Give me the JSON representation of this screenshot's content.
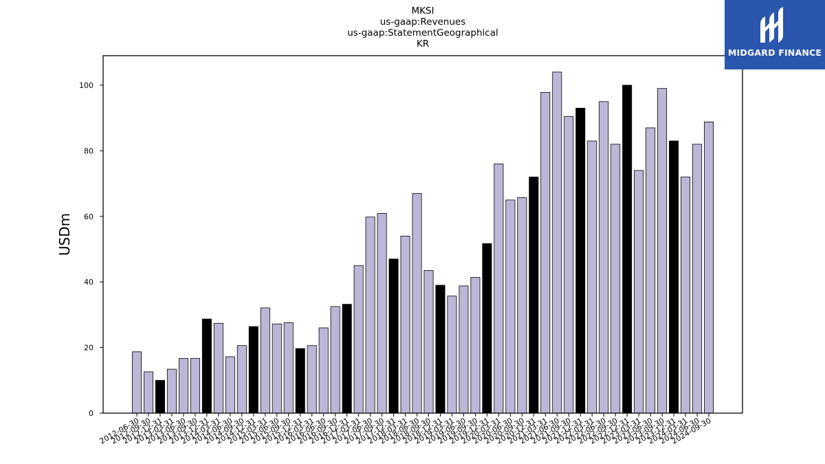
{
  "chart_data": {
    "type": "bar",
    "title_lines": [
      "MKSI",
      "us-gaap:Revenues",
      "us-gaap:StatementGeographical",
      "KR"
    ],
    "xlabel": "",
    "ylabel": "USDm",
    "ylim": [
      0,
      109
    ],
    "yticks": [
      0,
      20,
      40,
      60,
      80,
      100
    ],
    "grid": false,
    "colors": {
      "quarter": "#bcb7d7",
      "annual": "#000000",
      "edge": "#000000"
    },
    "categories": [
      "2012-06-30",
      "2012-09-30",
      "2012-12-31",
      "2013-03-31",
      "2013-06-30",
      "2013-09-30",
      "2013-12-31",
      "2014-03-31",
      "2014-06-30",
      "2014-09-30",
      "2014-12-31",
      "2015-03-31",
      "2015-06-30",
      "2015-09-30",
      "2015-12-31",
      "2016-03-31",
      "2016-06-30",
      "2016-09-30",
      "2016-12-31",
      "2017-03-31",
      "2017-06-30",
      "2017-09-30",
      "2017-12-31",
      "2018-03-31",
      "2018-06-30",
      "2018-09-30",
      "2018-12-31",
      "2019-03-31",
      "2019-06-30",
      "2019-09-30",
      "2019-12-31",
      "2020-03-31",
      "2020-06-30",
      "2020-09-30",
      "2020-12-31",
      "2021-03-31",
      "2021-06-30",
      "2021-09-30",
      "2021-12-31",
      "2022-03-31",
      "2022-06-30",
      "2022-09-30",
      "2022-12-31",
      "2023-03-31",
      "2023-06-30",
      "2023-09-30",
      "2023-12-31",
      "2024-03-31",
      "2024-06-30",
      "2024-09-30"
    ],
    "values": [
      18.7,
      12.6,
      10.0,
      13.4,
      16.7,
      16.7,
      28.7,
      27.4,
      17.2,
      20.6,
      26.4,
      32.1,
      27.2,
      27.6,
      19.7,
      20.6,
      26.0,
      32.5,
      33.2,
      45.0,
      59.8,
      60.9,
      47.0,
      54.0,
      67.0,
      43.5,
      39.0,
      35.7,
      38.8,
      41.4,
      51.7,
      76.0,
      65.0,
      65.7,
      72.0,
      97.8,
      104.0,
      90.5,
      93.0,
      83.0,
      95.0,
      82.0,
      100.0,
      74.0,
      87.0,
      99.0,
      83.0,
      72.0,
      82.0,
      88.8
    ],
    "annual": [
      false,
      false,
      true,
      false,
      false,
      false,
      true,
      false,
      false,
      false,
      true,
      false,
      false,
      false,
      true,
      false,
      false,
      false,
      true,
      false,
      false,
      false,
      true,
      false,
      false,
      false,
      true,
      false,
      false,
      false,
      true,
      false,
      false,
      false,
      true,
      false,
      false,
      false,
      true,
      false,
      false,
      false,
      true,
      false,
      false,
      false,
      true,
      false,
      false,
      false
    ]
  },
  "logo": {
    "text": "MIDGARD FINANCE"
  }
}
